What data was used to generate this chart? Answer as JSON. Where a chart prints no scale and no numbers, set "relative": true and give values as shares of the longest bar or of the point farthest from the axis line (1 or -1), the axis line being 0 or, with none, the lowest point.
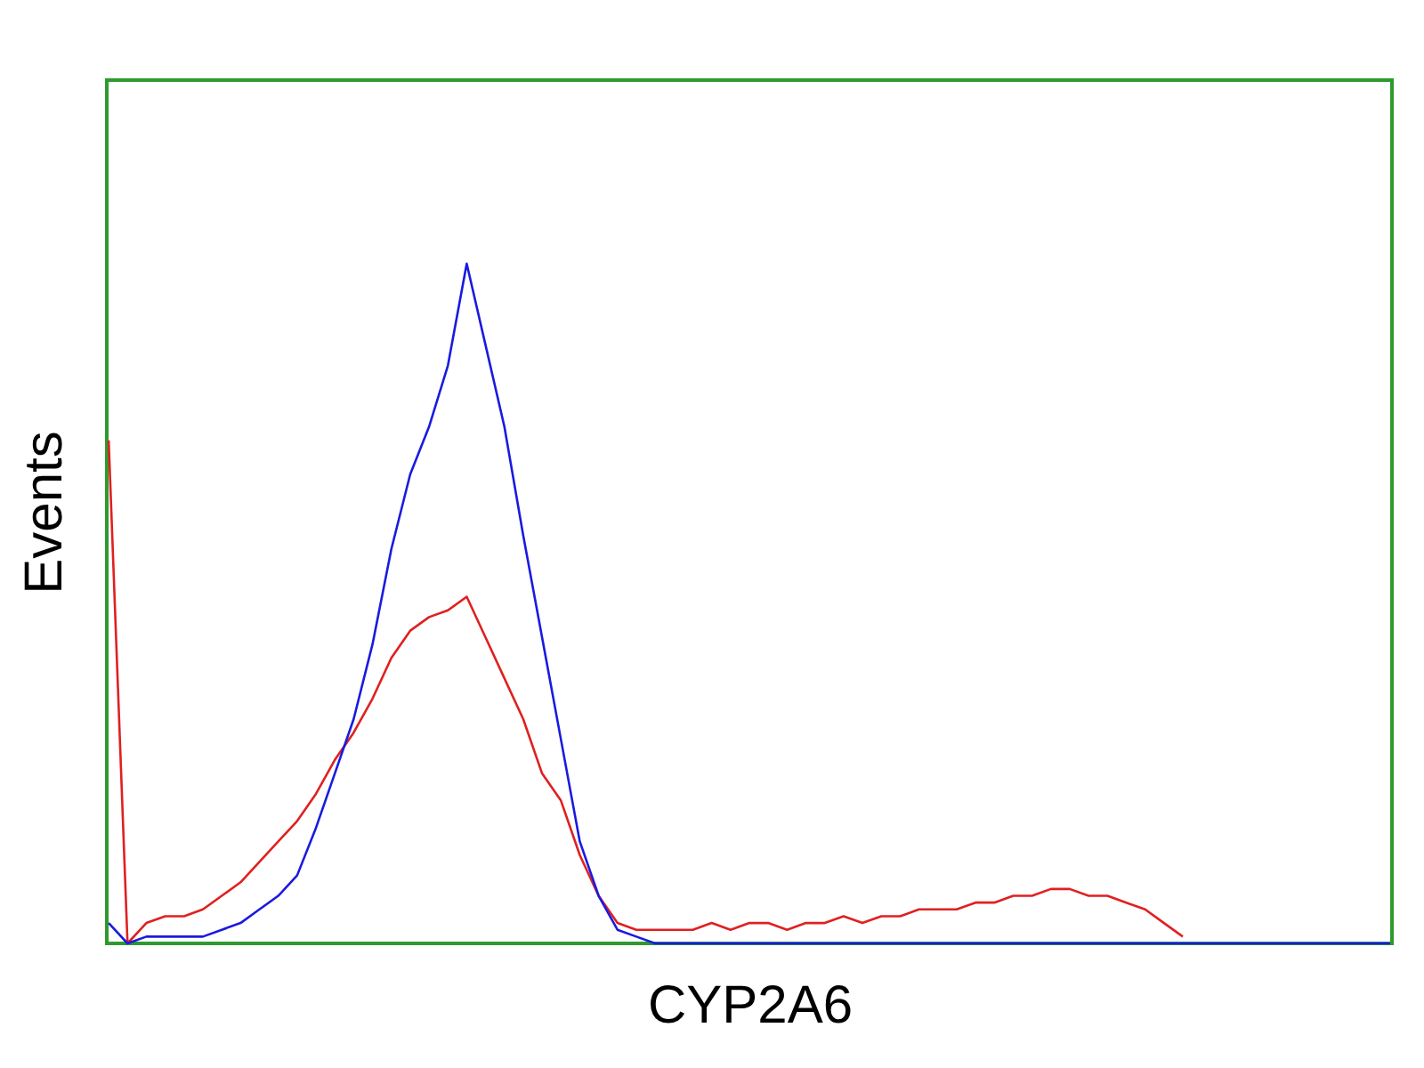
{
  "chart_data": {
    "type": "line",
    "relative": true,
    "xlabel": "CYP2A6",
    "ylabel": "Events",
    "categories": [
      null,
      null,
      null,
      null,
      null,
      null,
      null,
      null,
      null,
      null,
      null,
      null,
      null,
      null,
      null,
      null,
      null,
      null,
      null,
      null,
      null,
      null,
      null,
      null,
      null,
      null,
      null,
      null,
      null,
      null,
      null,
      null,
      null,
      null,
      null,
      null,
      null,
      null,
      null,
      null,
      null,
      null,
      null,
      null,
      null,
      null,
      null,
      null,
      null,
      null,
      null,
      null,
      null,
      null,
      null,
      null,
      null,
      null,
      null,
      null,
      null,
      null,
      null,
      null,
      null,
      null,
      null,
      null,
      null
    ],
    "series": [
      {
        "color": "#e02020",
        "values": [
          0.74,
          0,
          0.03,
          0.04,
          0.04,
          0.05,
          0.07,
          0.09,
          0.12,
          0.15,
          0.18,
          0.22,
          0.27,
          0.31,
          0.36,
          0.42,
          0.46,
          0.48,
          0.49,
          0.51,
          0.45,
          0.39,
          0.33,
          0.25,
          0.21,
          0.13,
          0.07,
          0.03,
          0.02,
          0.02,
          0.02,
          0.02,
          0.03,
          0.02,
          0.03,
          0.03,
          0.02,
          0.03,
          0.03,
          0.04,
          0.03,
          0.04,
          0.04,
          0.05,
          0.05,
          0.05,
          0.06,
          0.06,
          0.07,
          0.07,
          0.08,
          0.08,
          0.07,
          0.07,
          0.06,
          0.05,
          0.03,
          0.01,
          null,
          null,
          null,
          null,
          null,
          null,
          null,
          null,
          null,
          null,
          null
        ]
      },
      {
        "color": "#1a1ae0",
        "values": [
          0.03,
          0,
          0.01,
          0.01,
          0.01,
          0.01,
          0.02,
          0.03,
          0.05,
          0.07,
          0.1,
          0.17,
          0.25,
          0.33,
          0.44,
          0.58,
          0.69,
          0.76,
          0.85,
          1.0,
          0.88,
          0.76,
          0.6,
          0.45,
          0.3,
          0.15,
          0.07,
          0.02,
          0.01,
          0,
          0,
          0,
          0,
          0,
          0,
          0,
          0,
          0,
          0,
          0,
          0,
          0,
          0,
          0,
          0,
          0,
          0,
          0,
          0,
          0,
          0,
          0,
          0,
          0,
          0,
          0,
          0,
          0,
          0,
          0,
          0,
          0,
          0,
          0,
          0,
          0,
          0,
          0,
          0
        ]
      }
    ],
    "tick_labels": false,
    "grid": false,
    "legend": false
  }
}
